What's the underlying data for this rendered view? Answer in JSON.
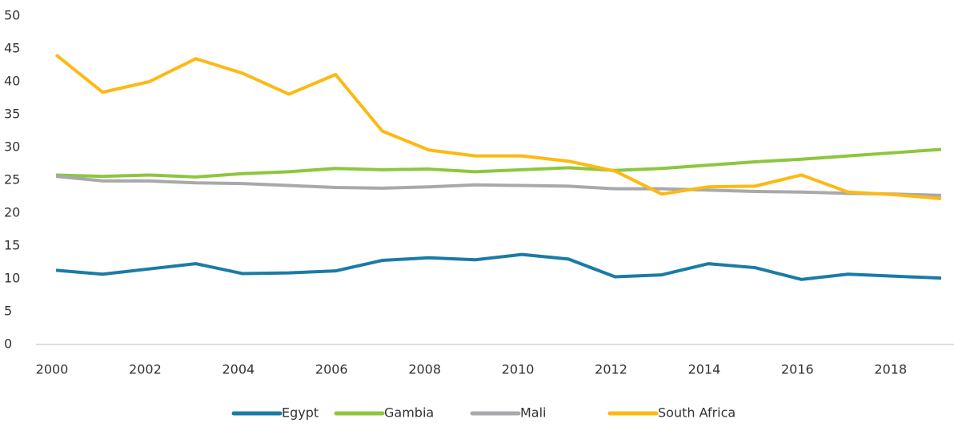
{
  "chart_data": {
    "type": "line",
    "x": [
      2000,
      2001,
      2002,
      2003,
      2004,
      2005,
      2006,
      2007,
      2008,
      2009,
      2010,
      2011,
      2012,
      2013,
      2014,
      2015,
      2016,
      2017,
      2018,
      2019
    ],
    "series": [
      {
        "name": "Egypt",
        "color": "#1a7ba6",
        "values": [
          11.3,
          10.7,
          11.5,
          12.3,
          10.8,
          10.9,
          11.2,
          12.8,
          13.2,
          12.9,
          13.7,
          13.0,
          10.3,
          10.6,
          12.3,
          11.7,
          9.9,
          10.7,
          10.4,
          10.1
        ]
      },
      {
        "name": "Gambia",
        "color": "#8dc63f",
        "values": [
          25.8,
          25.6,
          25.8,
          25.5,
          26.0,
          26.3,
          26.8,
          26.6,
          26.7,
          26.3,
          26.6,
          26.9,
          26.5,
          26.8,
          27.3,
          27.8,
          28.2,
          28.7,
          29.2,
          29.7
        ]
      },
      {
        "name": "Mali",
        "color": "#a7a9ac",
        "values": [
          25.6,
          24.9,
          24.9,
          24.6,
          24.5,
          24.2,
          23.9,
          23.8,
          24.0,
          24.3,
          24.2,
          24.1,
          23.7,
          23.7,
          23.5,
          23.3,
          23.2,
          23.0,
          22.9,
          22.7
        ]
      },
      {
        "name": "South Africa",
        "color": "#fdb913",
        "values": [
          44.1,
          38.4,
          40.0,
          43.5,
          41.3,
          38.1,
          41.1,
          32.5,
          29.6,
          28.7,
          28.7,
          27.9,
          26.4,
          22.9,
          24.0,
          24.1,
          25.8,
          23.2,
          22.8,
          22.2
        ]
      }
    ],
    "xlim": [
      2000,
      2019
    ],
    "xticks": [
      2000,
      2002,
      2004,
      2006,
      2008,
      2010,
      2012,
      2014,
      2016,
      2018
    ],
    "ylim": [
      0,
      50
    ],
    "yticks": [
      0,
      5,
      10,
      15,
      20,
      25,
      30,
      35,
      40,
      45,
      50
    ],
    "grid": false,
    "legend": "bottom"
  }
}
